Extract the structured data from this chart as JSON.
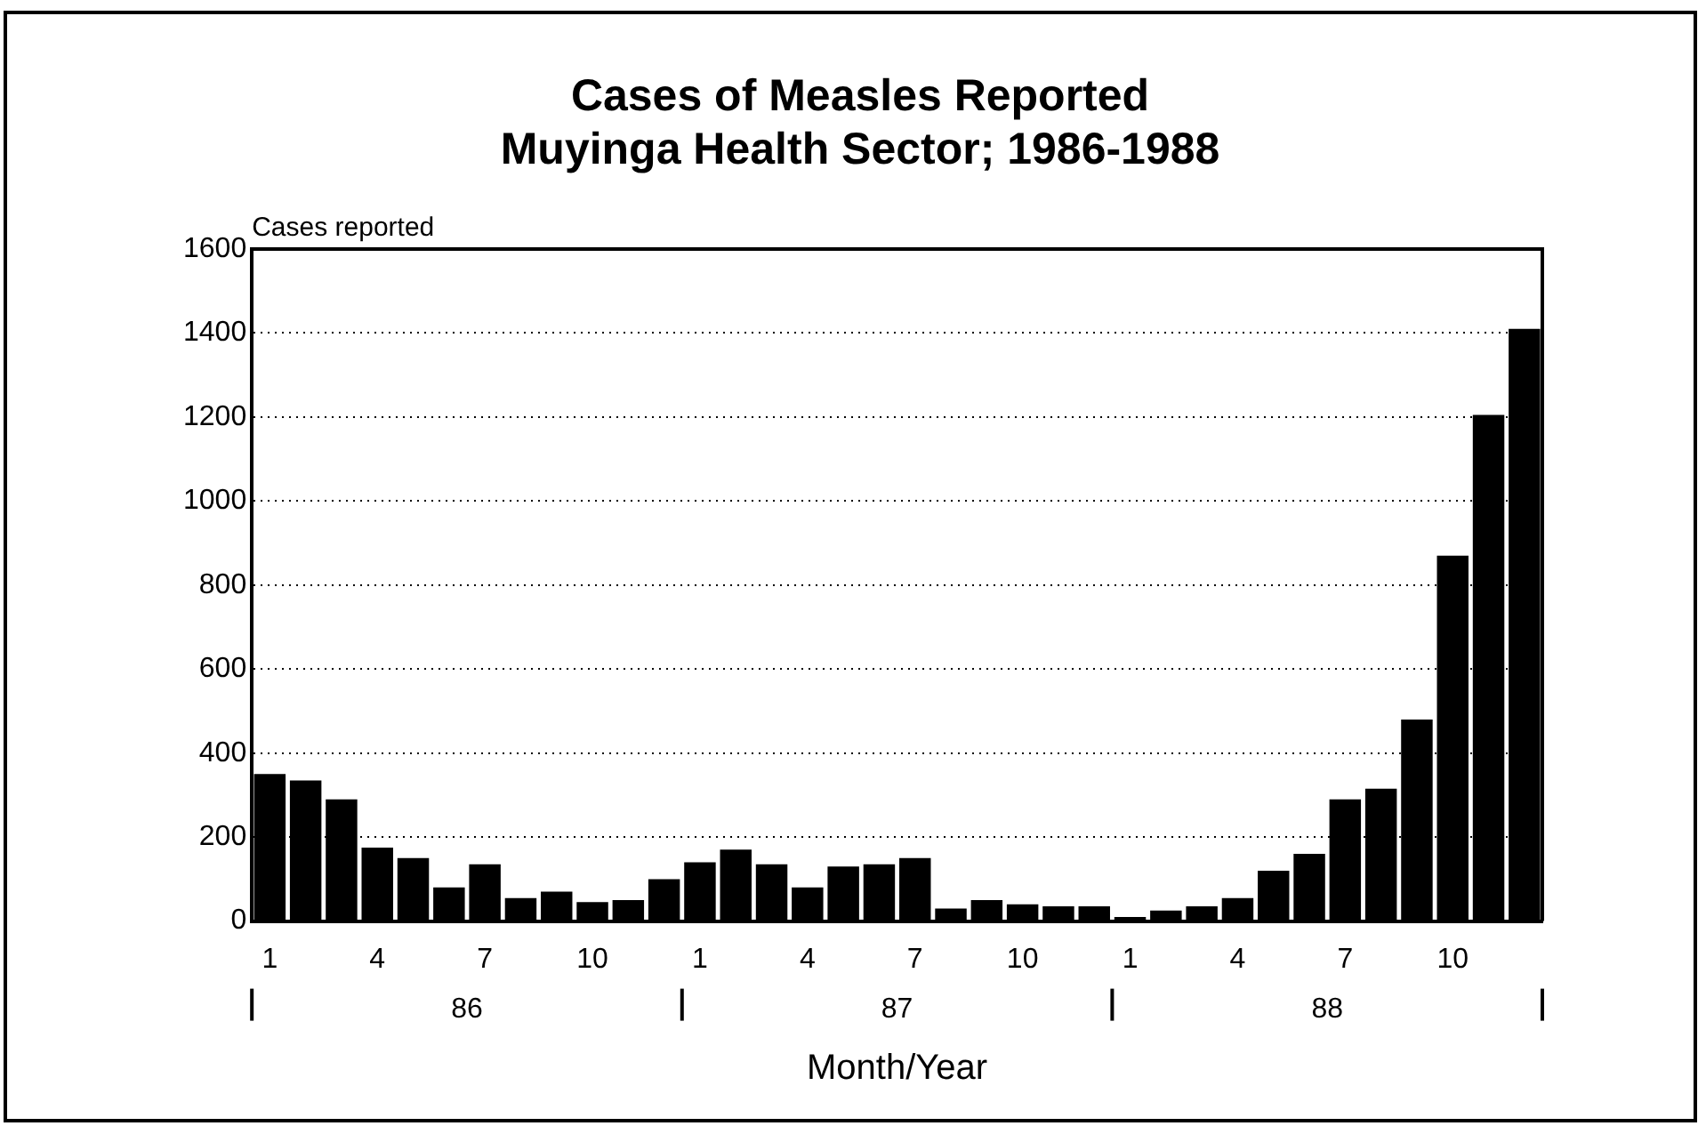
{
  "chart_data": {
    "type": "bar",
    "title": "Cases of Measles Reported\nMuyinga Health Sector; 1986-1988",
    "xlabel": "Month/Year",
    "ylabel": "Cases reported",
    "categories": [
      "1",
      null,
      null,
      "4",
      null,
      null,
      "7",
      null,
      null,
      "10",
      null,
      null,
      "1",
      null,
      null,
      "4",
      null,
      null,
      "7",
      null,
      null,
      "10",
      null,
      null,
      "1",
      null,
      null,
      "4",
      null,
      null,
      "7",
      null,
      null,
      "10",
      null,
      null
    ],
    "values": [
      350,
      335,
      290,
      175,
      150,
      80,
      135,
      55,
      70,
      45,
      50,
      100,
      140,
      170,
      135,
      80,
      130,
      135,
      150,
      30,
      50,
      40,
      35,
      35,
      10,
      25,
      35,
      55,
      120,
      160,
      290,
      315,
      480,
      870,
      1205,
      1410
    ],
    "color": "#000000",
    "annotations": [
      "86",
      "87",
      "88"
    ],
    "ylim": [
      0,
      1600
    ],
    "yticks": [
      0,
      200,
      400,
      600,
      800,
      1000,
      1200,
      1400,
      1600
    ],
    "grid": "y",
    "legend": false
  }
}
